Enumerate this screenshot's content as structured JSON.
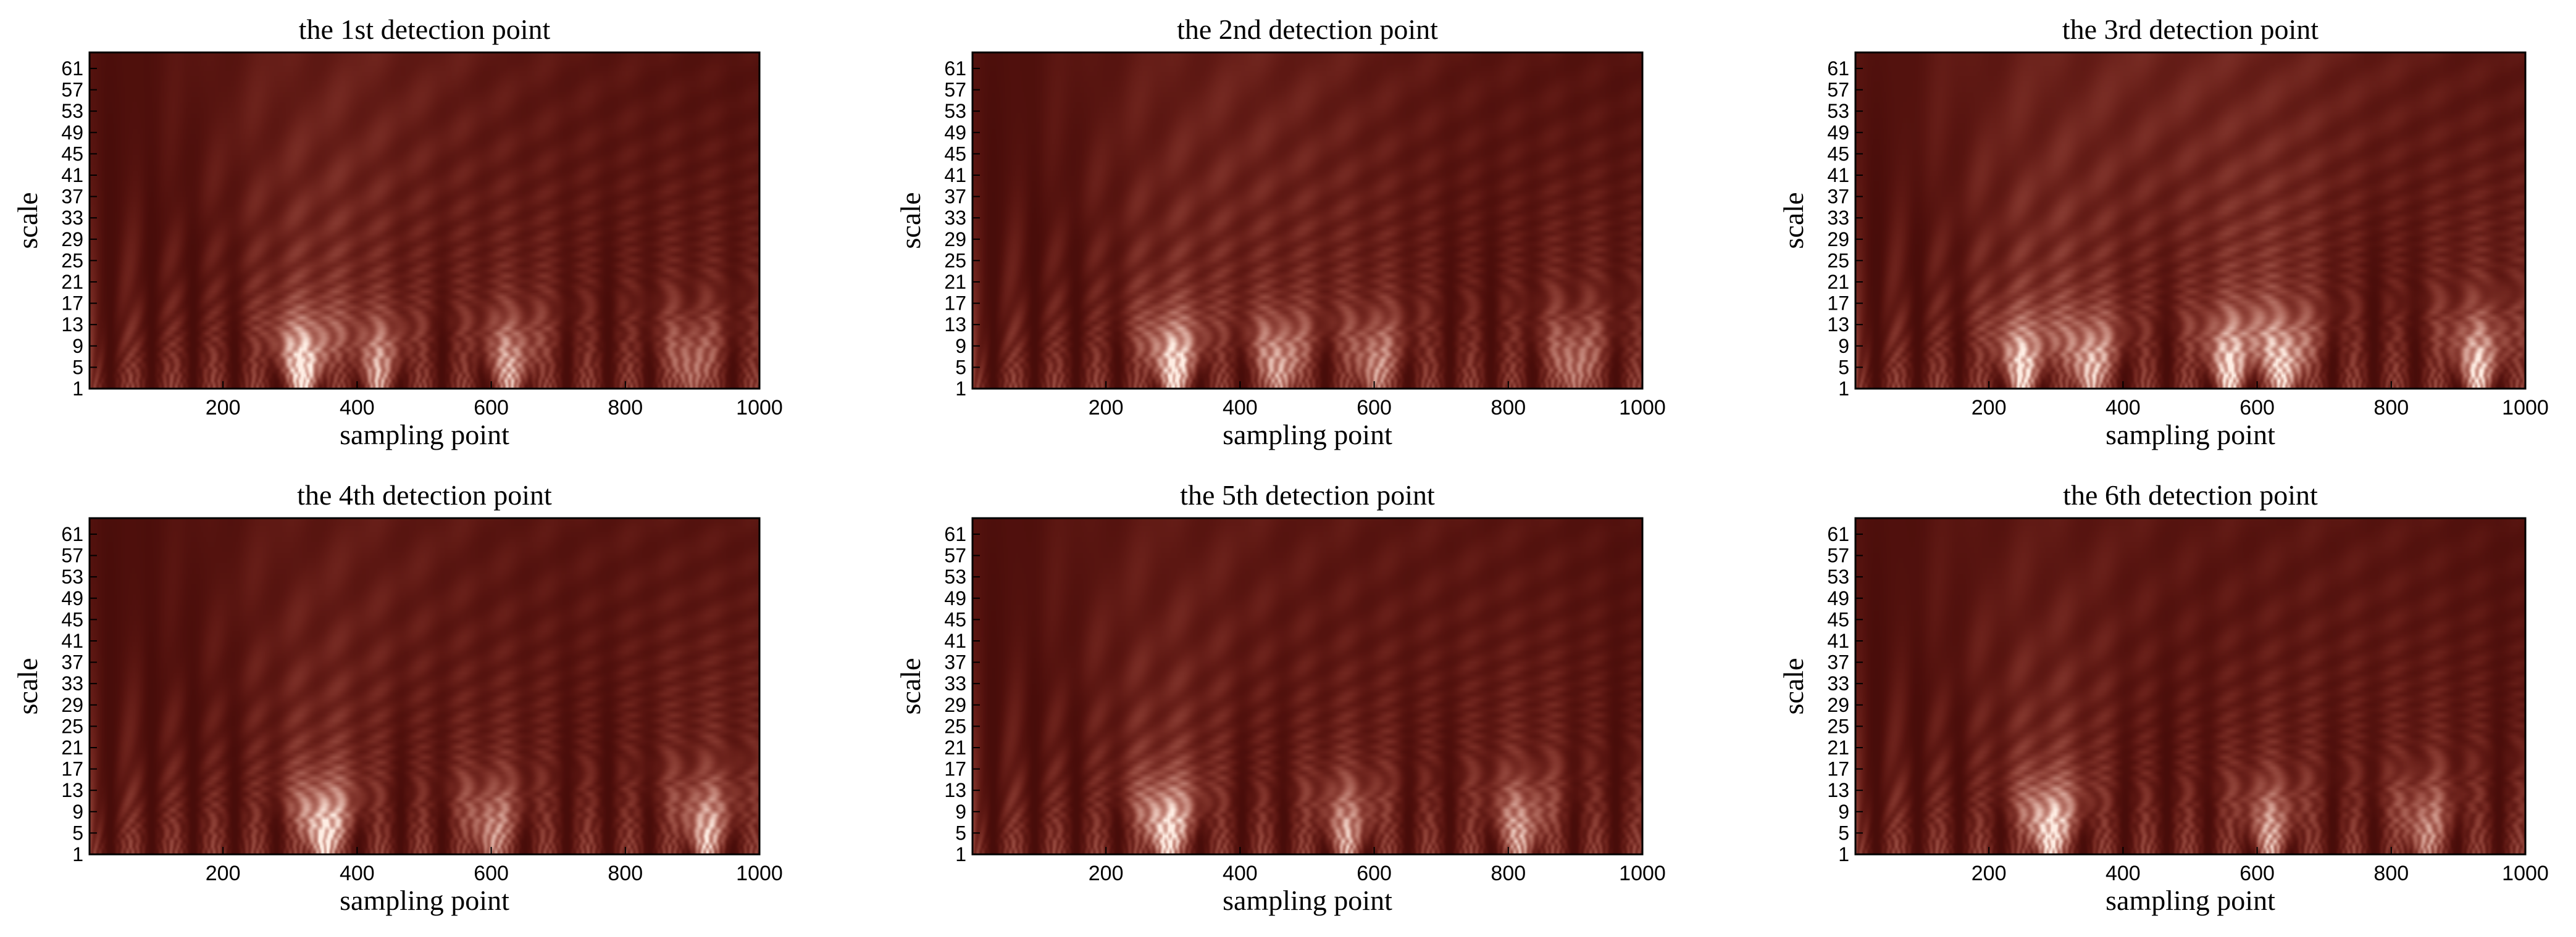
{
  "chart_data": [
    {
      "type": "heatmap",
      "title": "the 1st detection point",
      "xlabel": "sampling point",
      "ylabel": "scale",
      "xlim": [
        1,
        1000
      ],
      "ylim": [
        1,
        64
      ],
      "xticks": [
        200,
        400,
        600,
        800,
        1000
      ],
      "yticks": [
        1,
        5,
        9,
        13,
        17,
        21,
        25,
        29,
        33,
        37,
        41,
        45,
        49,
        53,
        57,
        61
      ],
      "colormap": "pink",
      "colors": {
        "low": "#1e0303",
        "high": "#ffffff"
      },
      "peaks": [
        {
          "x": 320,
          "strength": 1.0
        },
        {
          "x": 430,
          "strength": 0.55
        },
        {
          "x": 630,
          "strength": 0.6
        },
        {
          "x": 900,
          "strength": 0.45
        }
      ]
    },
    {
      "type": "heatmap",
      "title": "the 2nd detection point",
      "xlabel": "sampling point",
      "ylabel": "scale",
      "xlim": [
        1,
        1000
      ],
      "ylim": [
        1,
        64
      ],
      "xticks": [
        200,
        400,
        600,
        800,
        1000
      ],
      "yticks": [
        1,
        5,
        9,
        13,
        17,
        21,
        25,
        29,
        33,
        37,
        41,
        45,
        49,
        53,
        57,
        61
      ],
      "colormap": "pink",
      "colors": {
        "low": "#1e0303",
        "high": "#ffffff"
      },
      "peaks": [
        {
          "x": 300,
          "strength": 0.95
        },
        {
          "x": 460,
          "strength": 0.7
        },
        {
          "x": 600,
          "strength": 0.55
        },
        {
          "x": 900,
          "strength": 0.5
        }
      ]
    },
    {
      "type": "heatmap",
      "title": "the 3rd detection point",
      "xlabel": "sampling point",
      "ylabel": "scale",
      "xlim": [
        1,
        1000
      ],
      "ylim": [
        1,
        64
      ],
      "xticks": [
        200,
        400,
        600,
        800,
        1000
      ],
      "yticks": [
        1,
        5,
        9,
        13,
        17,
        21,
        25,
        29,
        33,
        37,
        41,
        45,
        49,
        53,
        57,
        61
      ],
      "colormap": "pink",
      "colors": {
        "low": "#1e0303",
        "high": "#ffffff"
      },
      "peaks": [
        {
          "x": 250,
          "strength": 0.85
        },
        {
          "x": 350,
          "strength": 0.8
        },
        {
          "x": 560,
          "strength": 0.85
        },
        {
          "x": 640,
          "strength": 0.9
        },
        {
          "x": 930,
          "strength": 0.75
        }
      ]
    },
    {
      "type": "heatmap",
      "title": "the 4th detection point",
      "xlabel": "sampling point",
      "ylabel": "scale",
      "xlim": [
        1,
        1000
      ],
      "ylim": [
        1,
        64
      ],
      "xticks": [
        200,
        400,
        600,
        800,
        1000
      ],
      "yticks": [
        1,
        5,
        9,
        13,
        17,
        21,
        25,
        29,
        33,
        37,
        41,
        45,
        49,
        53,
        57,
        61
      ],
      "colormap": "pink",
      "colors": {
        "low": "#1e0303",
        "high": "#ffffff"
      },
      "peaks": [
        {
          "x": 350,
          "strength": 1.0
        },
        {
          "x": 600,
          "strength": 0.55
        },
        {
          "x": 920,
          "strength": 0.7
        }
      ]
    },
    {
      "type": "heatmap",
      "title": "the 5th detection point",
      "xlabel": "sampling point",
      "ylabel": "scale",
      "xlim": [
        1,
        1000
      ],
      "ylim": [
        1,
        64
      ],
      "xticks": [
        200,
        400,
        600,
        800,
        1000
      ],
      "yticks": [
        1,
        5,
        9,
        13,
        17,
        21,
        25,
        29,
        33,
        37,
        41,
        45,
        49,
        53,
        57,
        61
      ],
      "colormap": "pink",
      "colors": {
        "low": "#1e0303",
        "high": "#ffffff"
      },
      "peaks": [
        {
          "x": 290,
          "strength": 1.0
        },
        {
          "x": 560,
          "strength": 0.55
        },
        {
          "x": 820,
          "strength": 0.6
        }
      ]
    },
    {
      "type": "heatmap",
      "title": "the 6th detection point",
      "xlabel": "sampling point",
      "ylabel": "scale",
      "xlim": [
        1,
        1000
      ],
      "ylim": [
        1,
        64
      ],
      "xticks": [
        200,
        400,
        600,
        800,
        1000
      ],
      "yticks": [
        1,
        5,
        9,
        13,
        17,
        21,
        25,
        29,
        33,
        37,
        41,
        45,
        49,
        53,
        57,
        61
      ],
      "colormap": "pink",
      "colors": {
        "low": "#1e0303",
        "high": "#ffffff"
      },
      "peaks": [
        {
          "x": 290,
          "strength": 1.0
        },
        {
          "x": 620,
          "strength": 0.55
        },
        {
          "x": 850,
          "strength": 0.5
        }
      ]
    }
  ]
}
